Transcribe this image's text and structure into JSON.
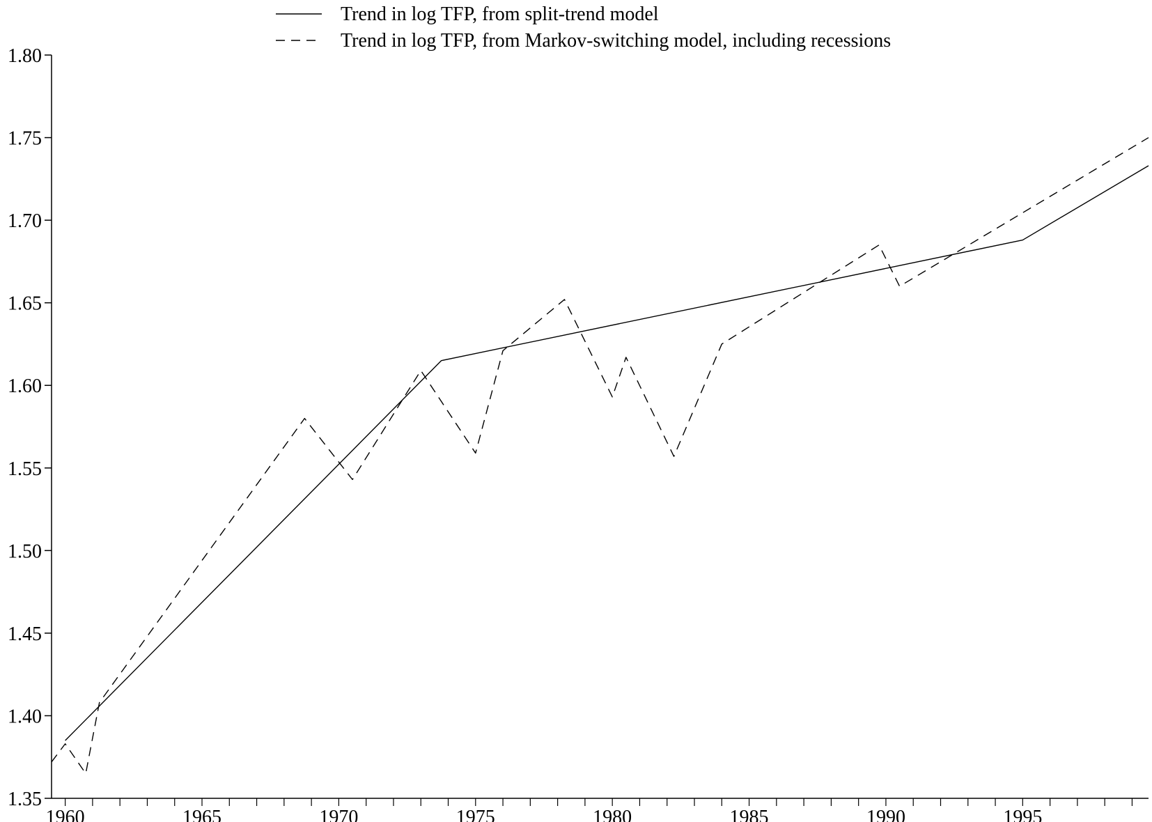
{
  "chart_data": {
    "type": "line",
    "title": "",
    "xlabel": "",
    "ylabel": "",
    "xlim": [
      1959.5,
      1999.6
    ],
    "ylim": [
      1.35,
      1.8
    ],
    "x_ticks": [
      1960,
      1965,
      1970,
      1975,
      1980,
      1985,
      1990,
      1995
    ],
    "x_minor_step": 1,
    "y_ticks": [
      1.35,
      1.4,
      1.45,
      1.5,
      1.55,
      1.6,
      1.65,
      1.7,
      1.75,
      1.8
    ],
    "y_tick_labels": [
      "1.35",
      "1.40",
      "1.45",
      "1.50",
      "1.55",
      "1.60",
      "1.65",
      "1.70",
      "1.75",
      "1.80"
    ],
    "grid": false,
    "legend_position": "top",
    "series": [
      {
        "name": "Trend in log TFP, from split-trend model",
        "style": "solid",
        "color": "#000000",
        "points": [
          [
            1960.0,
            1.385
          ],
          [
            1973.75,
            1.615
          ],
          [
            1995.0,
            1.688
          ],
          [
            1999.6,
            1.733
          ]
        ]
      },
      {
        "name": "Trend in log TFP, from Markov-switching model, including recessions",
        "style": "dashed",
        "color": "#000000",
        "points": [
          [
            1959.5,
            1.372
          ],
          [
            1960.0,
            1.383
          ],
          [
            1960.75,
            1.365
          ],
          [
            1961.25,
            1.408
          ],
          [
            1968.75,
            1.58
          ],
          [
            1970.5,
            1.543
          ],
          [
            1973.0,
            1.609
          ],
          [
            1975.0,
            1.559
          ],
          [
            1976.0,
            1.621
          ],
          [
            1978.25,
            1.652
          ],
          [
            1980.0,
            1.593
          ],
          [
            1980.5,
            1.617
          ],
          [
            1982.25,
            1.557
          ],
          [
            1984.0,
            1.625
          ],
          [
            1989.75,
            1.685
          ],
          [
            1990.5,
            1.66
          ],
          [
            1999.6,
            1.75
          ]
        ]
      }
    ]
  }
}
